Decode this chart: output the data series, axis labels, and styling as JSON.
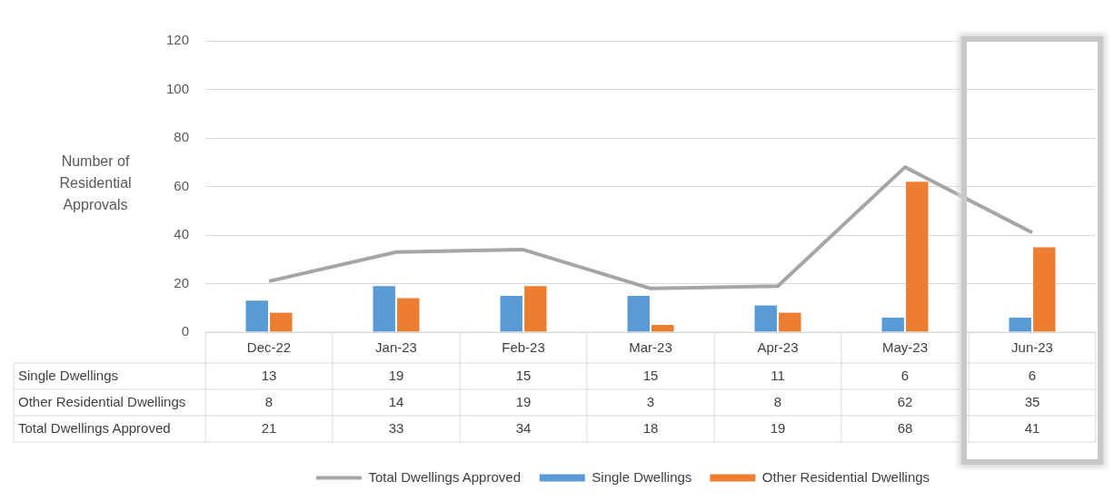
{
  "chart_data": {
    "type": "bar",
    "ylabel": "Number of Residential Approvals",
    "categories": [
      "Dec-22",
      "Jan-23",
      "Feb-23",
      "Mar-23",
      "Apr-23",
      "May-23",
      "Jun-23"
    ],
    "series": [
      {
        "name": "Single Dwellings",
        "color": "#5b9bd5",
        "values": [
          13,
          19,
          15,
          15,
          11,
          6,
          6
        ]
      },
      {
        "name": "Other Residential Dwellings",
        "color": "#ed7d31",
        "values": [
          8,
          14,
          19,
          3,
          8,
          62,
          35
        ]
      },
      {
        "name": "Total Dwellings Approved",
        "type": "line",
        "color": "#a5a5a5",
        "values": [
          21,
          33,
          34,
          18,
          19,
          68,
          41
        ]
      }
    ],
    "ylim": [
      0,
      120
    ],
    "yticks": [
      0,
      20,
      40,
      60,
      80,
      100,
      120
    ],
    "grid": "y",
    "legend": "bottom",
    "marker": "none",
    "line_style": "solid",
    "data_labels": true
  }
}
